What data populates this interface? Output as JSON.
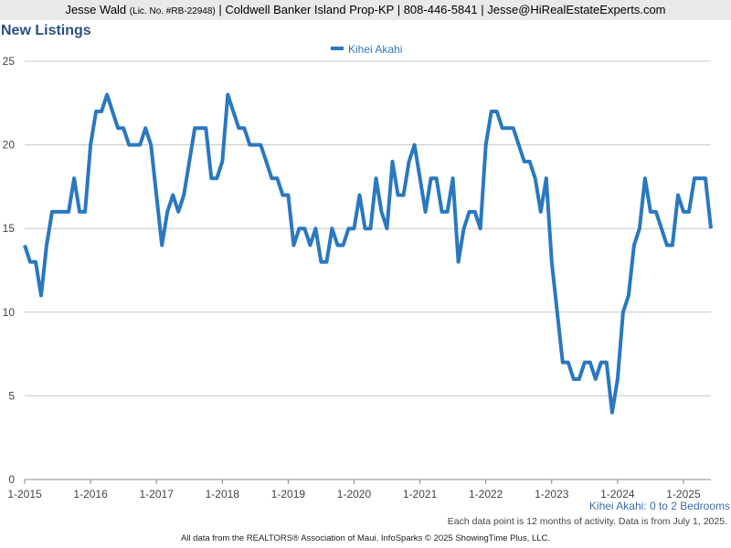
{
  "header": {
    "agent_name": "Jesse Wald",
    "license": "(Lic. No. #RB-22948)",
    "details": "| Coldwell Banker Island Prop-KP | 808-446-5841 | Jesse@HiRealEstateExperts.com"
  },
  "page_title": "New Listings",
  "subtitle": "Kihei Akahi: 0 to 2 Bedrooms",
  "note": "Each data point is 12 months of activity. Data is from July 1, 2025.",
  "footer": "All data from the REALTORS® Association of Maui. InfoSparks © 2025 ShowingTime Plus, LLC.",
  "colors": {
    "series": "#2a78bf",
    "grid": "#c8c8c8",
    "title": "#2a5082",
    "subtitle": "#3a6fa8"
  },
  "chart_data": {
    "type": "line",
    "title": "New Listings",
    "legend_position": "top-center",
    "grid": true,
    "ylim": [
      0,
      25
    ],
    "yticks": [
      0,
      5,
      10,
      15,
      20,
      25
    ],
    "xlim": [
      "2015-01",
      "2025-06"
    ],
    "xticks": [
      "1-2015",
      "1-2016",
      "1-2017",
      "1-2018",
      "1-2019",
      "1-2020",
      "1-2021",
      "1-2022",
      "1-2023",
      "1-2024",
      "1-2025"
    ],
    "start": "2015-01",
    "series": [
      {
        "name": "Kihei Akahi",
        "values": [
          14,
          13,
          13,
          11,
          14,
          16,
          16,
          16,
          16,
          18,
          16,
          16,
          20,
          22,
          22,
          23,
          22,
          21,
          21,
          20,
          20,
          20,
          21,
          20,
          17,
          14,
          16,
          17,
          16,
          17,
          19,
          21,
          21,
          21,
          18,
          18,
          19,
          23,
          22,
          21,
          21,
          20,
          20,
          20,
          19,
          18,
          18,
          17,
          17,
          14,
          15,
          15,
          14,
          15,
          13,
          13,
          15,
          14,
          14,
          15,
          15,
          17,
          15,
          15,
          18,
          16,
          15,
          19,
          17,
          17,
          19,
          20,
          18,
          16,
          18,
          18,
          16,
          16,
          18,
          13,
          15,
          16,
          16,
          15,
          20,
          22,
          22,
          21,
          21,
          21,
          20,
          19,
          19,
          18,
          16,
          18,
          13,
          10,
          7,
          7,
          6,
          6,
          7,
          7,
          6,
          7,
          7,
          4,
          6,
          10,
          11,
          14,
          15,
          18,
          16,
          16,
          15,
          14,
          14,
          17,
          16,
          16,
          18,
          18,
          18,
          15
        ]
      }
    ]
  }
}
